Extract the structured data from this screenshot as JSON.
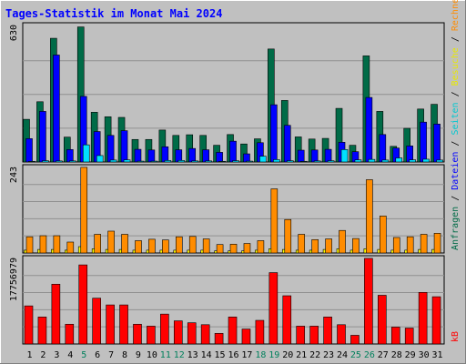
{
  "chart_data": [
    {
      "panel": "top",
      "type": "bar",
      "title": "Tages-Statistik im Monat Mai 2024",
      "ylabel_max": "630",
      "categories": [
        "1",
        "2",
        "3",
        "4",
        "5",
        "6",
        "7",
        "8",
        "9",
        "10",
        "11",
        "12",
        "13",
        "14",
        "15",
        "16",
        "17",
        "18",
        "19",
        "20",
        "21",
        "22",
        "23",
        "24",
        "25",
        "26",
        "27",
        "28",
        "29",
        "30",
        "31"
      ],
      "series": [
        {
          "name": "Anfragen",
          "color": "#006b47",
          "values": [
            199,
            281,
            577,
            116,
            630,
            232,
            211,
            208,
            105,
            105,
            149,
            124,
            127,
            124,
            78,
            128,
            84,
            108,
            527,
            287,
            117,
            107,
            110,
            250,
            78,
            495,
            236,
            73,
            157,
            247,
            269
          ]
        },
        {
          "name": "Dateien",
          "color": "#0000ff",
          "values": [
            109,
            236,
            499,
            58,
            306,
            142,
            124,
            146,
            59,
            56,
            71,
            57,
            63,
            57,
            45,
            97,
            38,
            90,
            267,
            171,
            55,
            56,
            59,
            92,
            48,
            301,
            128,
            65,
            75,
            186,
            177
          ]
        },
        {
          "name": "Seiten",
          "color": "#00e0ff",
          "values": [
            3,
            6,
            5,
            5,
            80,
            30,
            9,
            10,
            4,
            4,
            7,
            7,
            5,
            5,
            3,
            6,
            4,
            27,
            11,
            6,
            3,
            5,
            6,
            58,
            10,
            12,
            9,
            19,
            10,
            13,
            9
          ]
        }
      ],
      "legend_labels": [
        "Anfragen",
        "Dateien",
        "Seiten",
        "Besuche",
        "Rechner"
      ]
    },
    {
      "panel": "middle",
      "type": "bar",
      "ylabel_max": "243",
      "categories": [
        "1",
        "2",
        "3",
        "4",
        "5",
        "6",
        "7",
        "8",
        "9",
        "10",
        "11",
        "12",
        "13",
        "14",
        "15",
        "16",
        "17",
        "18",
        "19",
        "20",
        "21",
        "22",
        "23",
        "24",
        "25",
        "26",
        "27",
        "28",
        "29",
        "30",
        "31"
      ],
      "series": [
        {
          "name": "Besuche",
          "color": "#ffff00",
          "values": [
            8,
            10,
            10,
            8,
            18,
            12,
            10,
            10,
            8,
            8,
            8,
            8,
            8,
            8,
            6,
            6,
            6,
            8,
            12,
            10,
            8,
            8,
            10,
            12,
            8,
            12,
            10,
            8,
            8,
            10,
            10
          ]
        },
        {
          "name": "Rechner",
          "color": "#ff8c00",
          "values": [
            46,
            49,
            49,
            31,
            243,
            53,
            62,
            53,
            35,
            39,
            37,
            46,
            47,
            40,
            24,
            25,
            27,
            35,
            182,
            95,
            53,
            38,
            40,
            64,
            41,
            208,
            105,
            44,
            46,
            53,
            56
          ]
        }
      ]
    },
    {
      "panel": "bottom",
      "type": "bar",
      "ylabel_max": "17756979",
      "categories": [
        "1",
        "2",
        "3",
        "4",
        "5",
        "6",
        "7",
        "8",
        "9",
        "10",
        "11",
        "12",
        "13",
        "14",
        "15",
        "16",
        "17",
        "18",
        "19",
        "20",
        "21",
        "22",
        "23",
        "24",
        "25",
        "26",
        "27",
        "28",
        "29",
        "30",
        "31"
      ],
      "series": [
        {
          "name": "KB",
          "color": "#ff0000",
          "values": [
            7900000,
            5600000,
            12400000,
            4100000,
            16400000,
            9500000,
            8100000,
            8100000,
            4100000,
            3700000,
            6200000,
            4800000,
            4400000,
            4000000,
            2200000,
            5600000,
            3100000,
            4900000,
            14800000,
            10000000,
            3700000,
            3700000,
            5600000,
            4000000,
            1800000,
            17756979,
            10100000,
            3500000,
            3300000,
            10700000,
            9800000
          ]
        }
      ]
    }
  ],
  "day_label_colors": {
    "weekday": "#000000",
    "weekend": "#00805c"
  },
  "weekend_days": [
    5,
    11,
    12,
    18,
    19,
    25,
    26
  ],
  "colors": {
    "frame": "#c0c0c0",
    "plot_bg": "#c0c0c0",
    "title": "#0000ff",
    "gridline": "#909090"
  },
  "right_labels": {
    "top": [
      {
        "text": "Anfragen",
        "color": "#006b47"
      },
      {
        "text": " / ",
        "color": "#000000"
      },
      {
        "text": "Dateien",
        "color": "#0000ff"
      },
      {
        "text": " / ",
        "color": "#000000"
      },
      {
        "text": "Seiten",
        "color": "#00c8d0"
      },
      {
        "text": " / ",
        "color": "#000000"
      },
      {
        "text": "Besuche",
        "color": "#e8e800"
      },
      {
        "text": " / ",
        "color": "#000000"
      },
      {
        "text": "Rechner",
        "color": "#ff8c00"
      }
    ],
    "bottom": [
      {
        "text": "kB",
        "color": "#ff0000"
      }
    ]
  }
}
